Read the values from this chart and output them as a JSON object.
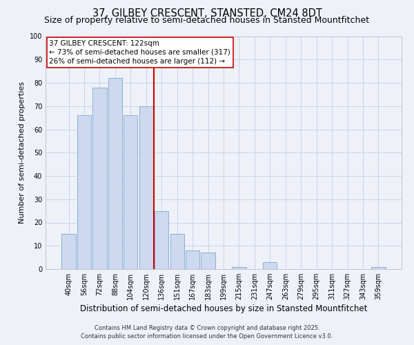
{
  "title": "37, GILBEY CRESCENT, STANSTED, CM24 8DT",
  "subtitle": "Size of property relative to semi-detached houses in Stansted Mountfitchet",
  "xlabel": "Distribution of semi-detached houses by size in Stansted Mountfitchet",
  "ylabel": "Number of semi-detached properties",
  "bar_labels": [
    "40sqm",
    "56sqm",
    "72sqm",
    "88sqm",
    "104sqm",
    "120sqm",
    "136sqm",
    "151sqm",
    "167sqm",
    "183sqm",
    "199sqm",
    "215sqm",
    "231sqm",
    "247sqm",
    "263sqm",
    "279sqm",
    "295sqm",
    "311sqm",
    "327sqm",
    "343sqm",
    "359sqm"
  ],
  "bar_values": [
    15,
    66,
    78,
    82,
    66,
    70,
    25,
    15,
    8,
    7,
    0,
    1,
    0,
    3,
    0,
    0,
    0,
    0,
    0,
    0,
    1
  ],
  "bar_color": "#cdd9ee",
  "bar_edge_color": "#8aaed4",
  "vline_x": 5.5,
  "vline_color": "#cc0000",
  "annotation_title": "37 GILBEY CRESCENT: 122sqm",
  "annotation_line1": "← 73% of semi-detached houses are smaller (317)",
  "annotation_line2": "26% of semi-detached houses are larger (112) →",
  "annotation_box_color": "#ffffff",
  "annotation_box_edge": "#cc0000",
  "ylim": [
    0,
    100
  ],
  "yticks": [
    0,
    10,
    20,
    30,
    40,
    50,
    60,
    70,
    80,
    90,
    100
  ],
  "bg_color": "#eef1f8",
  "grid_color": "#c8d4e8",
  "footer1": "Contains HM Land Registry data © Crown copyright and database right 2025.",
  "footer2": "Contains public sector information licensed under the Open Government Licence v3.0.",
  "title_fontsize": 10.5,
  "subtitle_fontsize": 9,
  "xlabel_fontsize": 8.5,
  "ylabel_fontsize": 8,
  "tick_fontsize": 7,
  "annotation_fontsize": 7.5,
  "footer_fontsize": 6
}
